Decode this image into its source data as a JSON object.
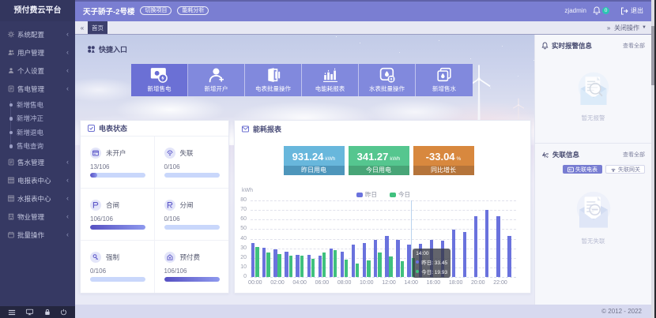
{
  "app": {
    "logo": "预付费云平台",
    "copyright": "© 2012 - 2022"
  },
  "header": {
    "title": "天子骄子-2号楼",
    "actions": [
      {
        "label": "切换项目"
      },
      {
        "label": "能耗分析"
      }
    ],
    "username": "zjadmin",
    "notification_count": "0",
    "logout_label": "退出"
  },
  "tabbar": {
    "collapse_icon": "«",
    "expand_icon": "»",
    "tabs": [
      {
        "label": "首页",
        "active": true
      }
    ],
    "close_menu_label": "关闭操作"
  },
  "sidebar": {
    "items": [
      {
        "label": "系统配置",
        "icon": "gear-icon",
        "children": []
      },
      {
        "label": "用户管理",
        "icon": "users-icon",
        "children": []
      },
      {
        "label": "个人设置",
        "icon": "user-icon",
        "children": []
      },
      {
        "label": "售电管理",
        "icon": "doc-icon",
        "children": [
          "新增售电",
          "新增冲正",
          "新增退电",
          "售电查询"
        ]
      },
      {
        "label": "售水管理",
        "icon": "doc-icon",
        "children": []
      },
      {
        "label": "电报表中心",
        "icon": "grid-icon",
        "children": []
      },
      {
        "label": "水报表中心",
        "icon": "grid-icon",
        "children": []
      },
      {
        "label": "物业管理",
        "icon": "building-icon",
        "children": []
      },
      {
        "label": "批量操作",
        "icon": "calendar-icon",
        "children": []
      }
    ],
    "footer_icons": [
      "menu-icon",
      "monitor-icon",
      "lock-icon",
      "power-icon"
    ]
  },
  "quick_entry": {
    "title": "快捷入口",
    "buttons": [
      {
        "label": "新增售电",
        "icon": "meter-plus-icon",
        "variant": "primary"
      },
      {
        "label": "新增开户",
        "icon": "user-plus-icon",
        "variant": "normal"
      },
      {
        "label": "电表批量操作",
        "icon": "meter-icon",
        "variant": "normal"
      },
      {
        "label": "电能耗报表",
        "icon": "chart-icon",
        "variant": "normal"
      },
      {
        "label": "水表批量操作",
        "icon": "water-gear-icon",
        "variant": "normal"
      },
      {
        "label": "新增售水",
        "icon": "water-doc-icon",
        "variant": "normal"
      }
    ]
  },
  "meter_status": {
    "title": "电表状态",
    "cells": [
      {
        "label": "未开户",
        "count": "13/106",
        "ratio": 0.123,
        "icon": "card-icon"
      },
      {
        "label": "失联",
        "count": "0/106",
        "ratio": 0,
        "icon": "offline-icon"
      },
      {
        "label": "合闸",
        "count": "106/106",
        "ratio": 1,
        "icon": "switch-on-icon"
      },
      {
        "label": "分闸",
        "count": "0/106",
        "ratio": 0,
        "icon": "switch-off-icon"
      },
      {
        "label": "强制",
        "count": "0/106",
        "ratio": 0,
        "icon": "key-icon"
      },
      {
        "label": "预付费",
        "count": "106/106",
        "ratio": 1,
        "icon": "prepaid-icon"
      }
    ]
  },
  "energy_report": {
    "title": "能耗报表",
    "stats": [
      {
        "value": "931.24",
        "unit": "kWh",
        "label": "昨日用电",
        "color_top": "#68b7dc",
        "color_bottom": "#4e96bb"
      },
      {
        "value": "341.27",
        "unit": "kWh",
        "label": "今日用电",
        "color_top": "#55c68f",
        "color_bottom": "#48a577"
      },
      {
        "value": "-33.04",
        "unit": "%",
        "label": "同比增长",
        "color_top": "#d8883e",
        "color_bottom": "#b5743a"
      }
    ]
  },
  "chart_data": {
    "type": "bar",
    "title": "能耗报表",
    "ylabel": "kWh",
    "ylim": [
      0,
      80
    ],
    "yticks": [
      0,
      10,
      20,
      30,
      40,
      50,
      60,
      70,
      80
    ],
    "x": [
      "00:00",
      "01:00",
      "02:00",
      "03:00",
      "04:00",
      "05:00",
      "06:00",
      "07:00",
      "08:00",
      "09:00",
      "10:00",
      "11:00",
      "12:00",
      "13:00",
      "14:00",
      "15:00",
      "16:00",
      "17:00",
      "18:00",
      "19:00",
      "20:00",
      "21:00",
      "22:00",
      "23:00"
    ],
    "xtick_labels": [
      "00:00",
      "02:00",
      "04:00",
      "06:00",
      "08:00",
      "10:00",
      "12:00",
      "14:00",
      "16:00",
      "18:00",
      "20:00",
      "22:00"
    ],
    "grid": true,
    "legend_position": "top",
    "series": [
      {
        "name": "昨日",
        "color": "#6a72dd",
        "values": [
          35.2,
          30.8,
          28.5,
          26.8,
          23.5,
          23.2,
          22.1,
          29.3,
          26.7,
          34.2,
          35.8,
          39.1,
          42.8,
          38.4,
          33.45,
          34.3,
          38.5,
          37.8,
          49.7,
          47.2,
          63.6,
          69.8,
          63.9,
          42.9
        ]
      },
      {
        "name": "今日",
        "color": "#40c17e",
        "values": [
          31.4,
          25.3,
          23.9,
          21.9,
          22.4,
          19.1,
          25.9,
          27.9,
          18.5,
          14.3,
          17.6,
          25.8,
          21.5,
          16.5,
          19.93,
          null,
          null,
          null,
          null,
          null,
          null,
          null,
          null,
          null
        ]
      }
    ],
    "tooltip": {
      "x": "14:00",
      "entries": [
        {
          "name": "昨日",
          "value": "33.45",
          "color": "#6a72dd"
        },
        {
          "name": "今日",
          "value": "19.93",
          "color": "#40c17e"
        }
      ]
    }
  },
  "alarm_panel": {
    "title": "实时报警信息",
    "view_all": "查看全部",
    "empty_text": "暂无报警"
  },
  "offline_panel": {
    "title": "失联信息",
    "view_all": "查看全部",
    "buttons": [
      {
        "label": "失联电表",
        "active": true
      },
      {
        "label": "失联网关",
        "active": false
      }
    ],
    "empty_text": "暂无失联"
  }
}
